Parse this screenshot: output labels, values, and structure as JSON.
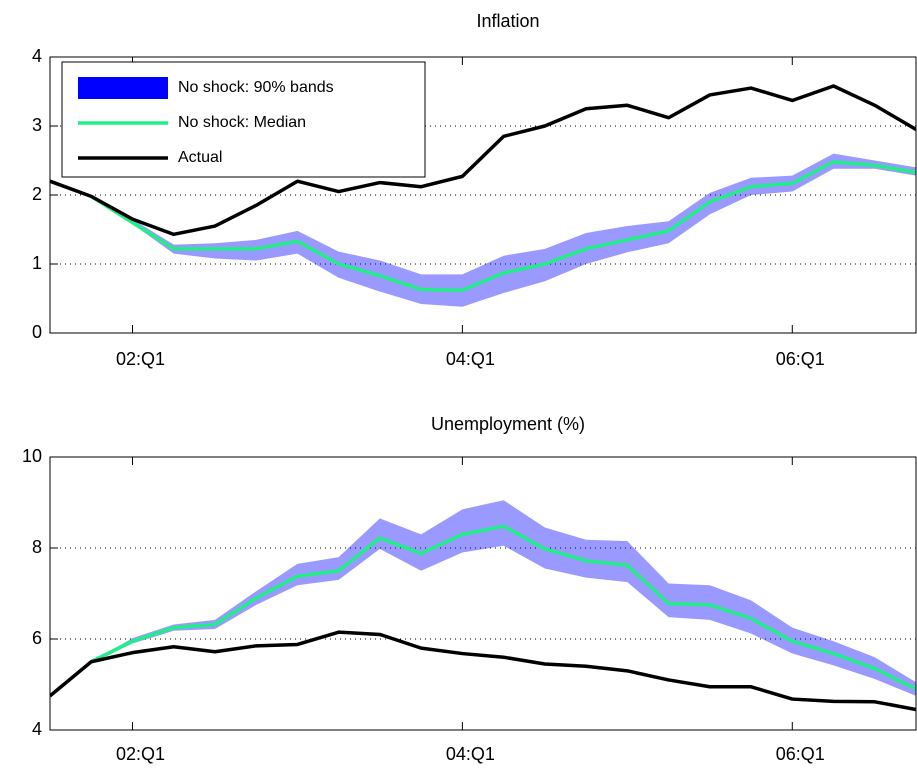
{
  "chart_data": [
    {
      "type": "line",
      "title": "Inflation",
      "x": [
        2001.5,
        2001.75,
        2002,
        2002.25,
        2002.5,
        2002.75,
        2003,
        2003.25,
        2003.5,
        2003.75,
        2004,
        2004.25,
        2004.5,
        2004.75,
        2005,
        2005.25,
        2005.5,
        2005.75,
        2006,
        2006.25,
        2006.5,
        2006.75
      ],
      "series": [
        {
          "name": "No shock: 90% bands",
          "color": "#0000ff",
          "lower": [
            null,
            1.98,
            1.58,
            1.15,
            1.08,
            1.05,
            1.15,
            0.8,
            0.6,
            0.42,
            0.38,
            0.58,
            0.75,
            1.0,
            1.17,
            1.3,
            1.72,
            2.0,
            2.05,
            2.38,
            2.38,
            2.28
          ],
          "upper": [
            null,
            1.98,
            1.65,
            1.28,
            1.3,
            1.35,
            1.48,
            1.18,
            1.05,
            0.85,
            0.85,
            1.12,
            1.22,
            1.45,
            1.55,
            1.62,
            2.03,
            2.25,
            2.28,
            2.6,
            2.5,
            2.4
          ]
        },
        {
          "name": "No shock: Median",
          "color": "#22ee88",
          "values": [
            null,
            1.98,
            1.6,
            1.22,
            1.22,
            1.22,
            1.33,
            1.0,
            0.83,
            0.63,
            0.62,
            0.87,
            1.0,
            1.22,
            1.35,
            1.48,
            1.9,
            2.12,
            2.17,
            2.48,
            2.43,
            2.33
          ]
        },
        {
          "name": "Actual",
          "color": "#000000",
          "values": [
            2.2,
            1.98,
            1.65,
            1.43,
            1.55,
            1.85,
            2.2,
            2.05,
            2.18,
            2.12,
            2.27,
            2.85,
            3.0,
            3.25,
            3.3,
            3.12,
            3.45,
            3.55,
            3.37,
            3.58,
            3.3,
            2.95
          ]
        }
      ],
      "xlim": [
        2001.5,
        2006.75
      ],
      "ylim": [
        0,
        4
      ],
      "xticks": [
        {
          "value": 2002,
          "label": "02:Q1"
        },
        {
          "value": 2004,
          "label": "04:Q1"
        },
        {
          "value": 2006,
          "label": "06:Q1"
        }
      ],
      "yticks": [
        0,
        1,
        2,
        3,
        4
      ],
      "grid": "y",
      "legend": "upper left"
    },
    {
      "type": "line",
      "title": "Unemployment (%)",
      "x": [
        2001.5,
        2001.75,
        2002,
        2002.25,
        2002.5,
        2002.75,
        2003,
        2003.25,
        2003.5,
        2003.75,
        2004,
        2004.25,
        2004.5,
        2004.75,
        2005,
        2005.25,
        2005.5,
        2005.75,
        2006,
        2006.25,
        2006.5,
        2006.75
      ],
      "series": [
        {
          "color": "#0000ff",
          "lower": [
            null,
            5.5,
            5.9,
            6.18,
            6.22,
            6.75,
            7.18,
            7.3,
            7.98,
            7.5,
            7.9,
            8.05,
            7.55,
            7.35,
            7.25,
            6.48,
            6.42,
            6.12,
            5.68,
            5.42,
            5.12,
            4.75
          ],
          "upper": [
            null,
            5.5,
            6.02,
            6.32,
            6.42,
            7.05,
            7.65,
            7.8,
            8.65,
            8.3,
            8.85,
            9.05,
            8.45,
            8.18,
            8.15,
            7.22,
            7.18,
            6.85,
            6.25,
            5.95,
            5.6,
            5.05
          ]
        },
        {
          "color": "#22ee88",
          "values": [
            null,
            5.5,
            5.95,
            6.25,
            6.32,
            6.9,
            7.38,
            7.5,
            8.22,
            7.88,
            8.3,
            8.48,
            7.98,
            7.72,
            7.62,
            6.78,
            6.75,
            6.45,
            5.95,
            5.68,
            5.35,
            4.9
          ]
        },
        {
          "color": "#000000",
          "values": [
            4.75,
            5.5,
            5.7,
            5.83,
            5.72,
            5.85,
            5.88,
            6.15,
            6.1,
            5.8,
            5.68,
            5.6,
            5.45,
            5.4,
            5.3,
            5.1,
            4.95,
            4.95,
            4.68,
            4.63,
            4.62,
            4.45
          ]
        }
      ],
      "xlim": [
        2001.5,
        2006.75
      ],
      "ylim": [
        4,
        10
      ],
      "xticks": [
        {
          "value": 2002,
          "label": "02:Q1"
        },
        {
          "value": 2004,
          "label": "04:Q1"
        },
        {
          "value": 2006,
          "label": "06:Q1"
        }
      ],
      "yticks": [
        4,
        6,
        8,
        10
      ],
      "grid": "y"
    }
  ]
}
